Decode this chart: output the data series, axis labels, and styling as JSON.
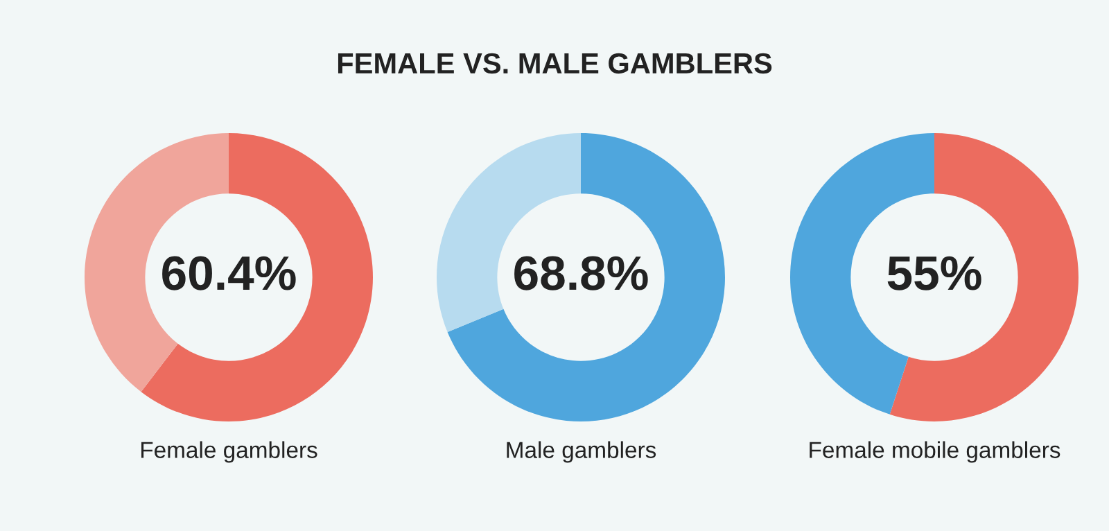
{
  "chart_data": [
    {
      "type": "other",
      "title": "FEMALE VS. MALE GAMBLERS"
    },
    {
      "type": "donut",
      "xlabel": "Female gamblers",
      "categories": [
        null,
        null
      ],
      "values": [
        60.4,
        39.6
      ],
      "colors": [
        "#ec6c5f",
        "#f0a59b"
      ],
      "annotations": [
        "60.4%"
      ]
    },
    {
      "type": "donut",
      "xlabel": "Male gamblers",
      "categories": [
        null,
        null
      ],
      "values": [
        68.8,
        31.2
      ],
      "colors": [
        "#4fa6dd",
        "#b7dbef"
      ],
      "annotations": [
        "68.8%"
      ]
    },
    {
      "type": "donut",
      "xlabel": "Female mobile gamblers",
      "categories": [
        null,
        null
      ],
      "values": [
        55,
        45
      ],
      "colors": [
        "#ec6c5f",
        "#4fa6dd"
      ],
      "annotations": [
        "55%"
      ]
    }
  ]
}
